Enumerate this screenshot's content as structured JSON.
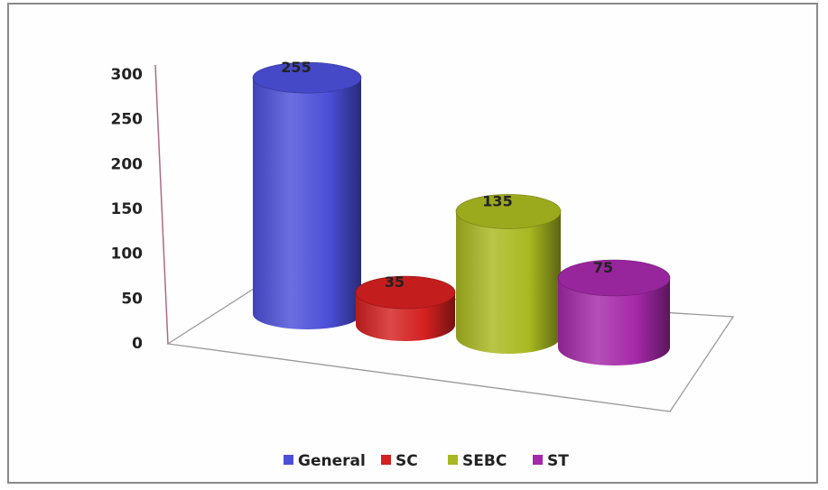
{
  "chart_data": {
    "type": "bar",
    "style": "3d-cylinder",
    "categories": [
      "General",
      "SC",
      "SEBC",
      "ST"
    ],
    "values": [
      255,
      35,
      135,
      75
    ],
    "data_labels": [
      "255",
      "35",
      "135",
      "75"
    ],
    "colors": [
      "#4b4fd8",
      "#d42020",
      "#a8b820",
      "#a428a8"
    ],
    "ylim": [
      0,
      300
    ],
    "yticks": [
      "0",
      "50",
      "100",
      "150",
      "200",
      "250",
      "300"
    ],
    "legend": {
      "position": "bottom",
      "entries": [
        "General",
        "SC",
        "SEBC",
        "ST"
      ]
    },
    "grid": false
  }
}
